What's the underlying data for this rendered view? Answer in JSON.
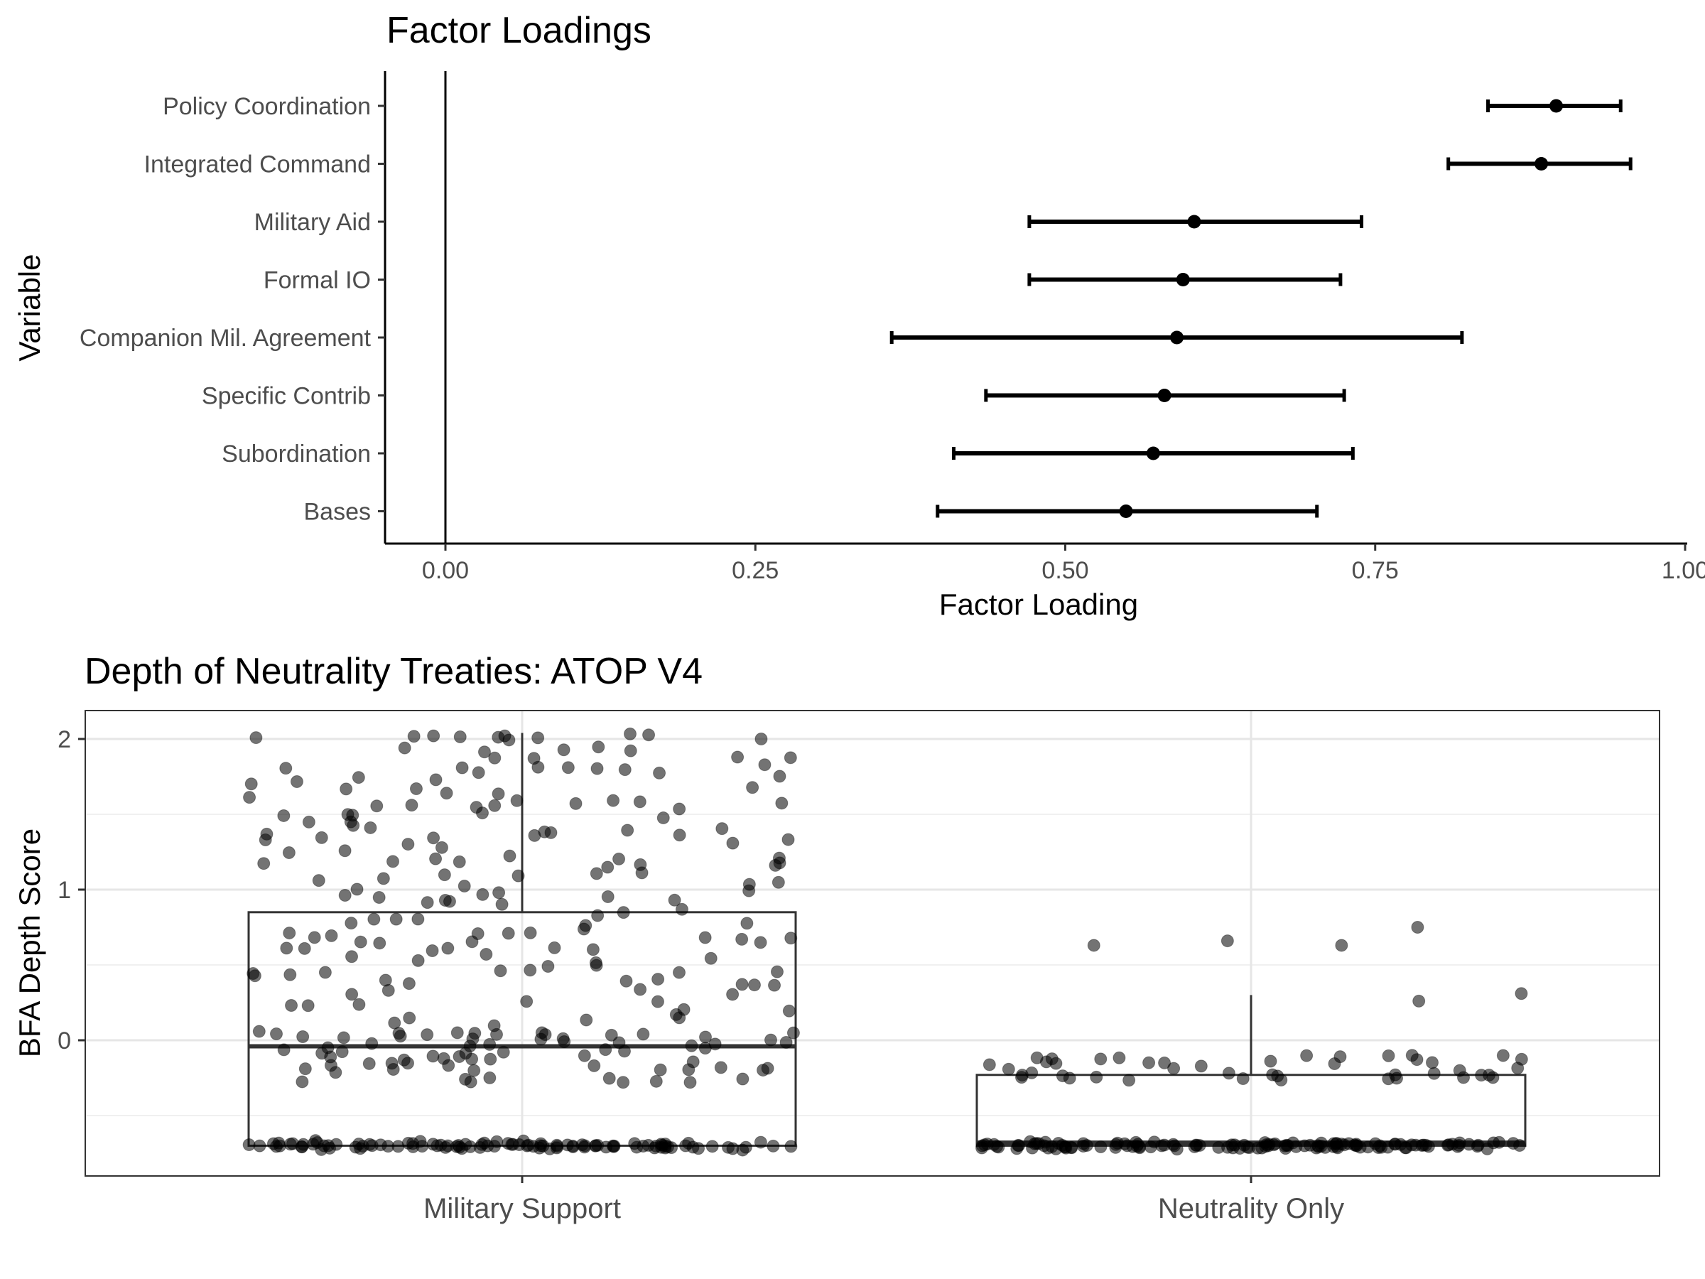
{
  "chart_data": [
    {
      "type": "dot-whisker",
      "title": "Factor Loadings",
      "xlabel": "Factor Loading",
      "ylabel": "Variable",
      "xlim": [
        -0.025,
        1.0
      ],
      "xticks": [
        "0.00",
        "0.25",
        "0.50",
        "0.75",
        "1.00"
      ],
      "reference_line_x": 0,
      "grid": false,
      "variables": [
        "Policy Coordination",
        "Integrated Command",
        "Military Aid",
        "Formal IO",
        "Companion Mil. Agreement",
        "Specific Contrib",
        "Subordination",
        "Bases"
      ],
      "estimate": [
        0.896,
        0.884,
        0.604,
        0.595,
        0.59,
        0.58,
        0.571,
        0.549
      ],
      "lower": [
        0.841,
        0.809,
        0.471,
        0.471,
        0.36,
        0.436,
        0.41,
        0.397
      ],
      "upper": [
        0.948,
        0.956,
        0.739,
        0.722,
        0.82,
        0.725,
        0.732,
        0.703
      ]
    },
    {
      "type": "box-jitter",
      "title": "Depth of Neutrality Treaties: ATOP V4",
      "xlabel": "",
      "ylabel": "BFA Depth Score",
      "ylim": [
        -0.9,
        2.15
      ],
      "yticks": [
        0,
        1,
        2
      ],
      "grid": true,
      "categories": [
        "Military Support",
        "Neutrality Only"
      ],
      "boxes": [
        {
          "name": "Military Support",
          "q1": -0.7,
          "median": -0.04,
          "q3": 0.85,
          "whisker_low": -0.7,
          "whisker_high": 2.04,
          "n_points": 350
        },
        {
          "name": "Neutrality Only",
          "q1": -0.7,
          "median": -0.68,
          "q3": -0.23,
          "whisker_low": -0.7,
          "whisker_high": 0.3,
          "n_points": 180
        }
      ],
      "outliers_neutrality": [
        0.75,
        0.66,
        0.63,
        0.63,
        0.31,
        0.26
      ]
    }
  ]
}
